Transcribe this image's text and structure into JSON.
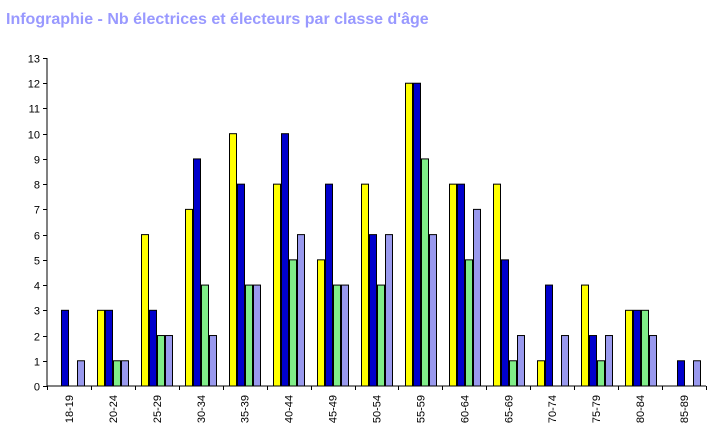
{
  "chart_data": {
    "type": "bar",
    "title": "Infographie - Nb électrices et électeurs par classe d'âge",
    "xlabel": "",
    "ylabel": "",
    "ylim": [
      0,
      13
    ],
    "yticks": [
      0,
      1,
      2,
      3,
      4,
      5,
      6,
      7,
      8,
      9,
      10,
      11,
      12,
      13
    ],
    "grid": false,
    "legend": "none",
    "categories": [
      "18-19",
      "20-24",
      "25-29",
      "30-34",
      "35-39",
      "40-44",
      "45-49",
      "50-54",
      "55-59",
      "60-64",
      "65-69",
      "70-74",
      "75-79",
      "80-84",
      "85-89"
    ],
    "series": [
      {
        "color": "#ffff00",
        "values": [
          0,
          3,
          6,
          7,
          10,
          8,
          5,
          8,
          12,
          8,
          8,
          1,
          4,
          3,
          0
        ]
      },
      {
        "color": "#0000cc",
        "values": [
          3,
          3,
          3,
          9,
          8,
          10,
          8,
          6,
          12,
          8,
          5,
          4,
          2,
          3,
          1
        ]
      },
      {
        "color": "#80ee88",
        "values": [
          0,
          1,
          2,
          4,
          4,
          5,
          4,
          4,
          9,
          5,
          1,
          0,
          1,
          3,
          0
        ]
      },
      {
        "color": "#9999ee",
        "values": [
          1,
          1,
          2,
          2,
          4,
          6,
          4,
          6,
          6,
          7,
          2,
          2,
          2,
          2,
          1
        ]
      }
    ]
  }
}
